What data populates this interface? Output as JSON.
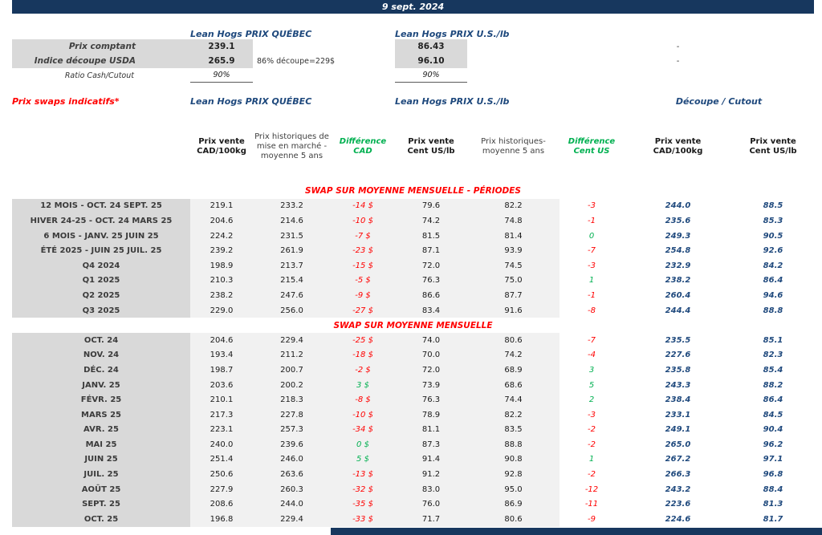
{
  "header": {
    "date": "9 sept. 2024"
  },
  "colors": {
    "navy": "#17375E",
    "cutout_navy": "#1F497D",
    "red": "#FF0000",
    "green": "#00B050",
    "label_gray": "#D9D9D9",
    "band_gray": "#F1F1F1"
  },
  "spot": {
    "quebec_title": "Lean Hogs PRIX QUÉBEC",
    "us_title": "Lean Hogs PRIX U.S./lb",
    "rows": [
      {
        "label": "Prix comptant",
        "qc": "239.1",
        "note": "",
        "us": "86.43",
        "extra": "-"
      },
      {
        "label": "Indice découpe USDA",
        "qc": "265.9",
        "note": "86% découpe=229$",
        "us": "96.10",
        "extra": "-"
      },
      {
        "label": "Ratio Cash/Cutout",
        "qc": "90%",
        "note": "",
        "us": "90%",
        "extra": ""
      }
    ]
  },
  "swaps": {
    "title": "Prix swaps indicatifs*",
    "quebec_title": "Lean Hogs PRIX QUÉBEC",
    "us_title": "Lean Hogs PRIX U.S./lb",
    "cutout_title": "Découpe / Cutout",
    "columns": {
      "qc_sale": "Prix vente CAD/100kg",
      "qc_hist": "Prix historiques de mise en marché - moyenne 5 ans",
      "diff_cad": "Différence CAD",
      "us_sale": "Prix vente Cent US/lb",
      "us_hist": "Prix historiques- moyenne 5 ans",
      "diff_us": "Différence Cent US",
      "cutout_cad": "Prix vente CAD/100kg",
      "cutout_us": "Prix vente Cent US/lb"
    }
  },
  "sections": [
    {
      "heading": "SWAP SUR MOYENNE MENSUELLE - PÉRIODES",
      "rows": [
        {
          "label": "12 MOIS - OCT. 24 SEPT. 25",
          "qc_sale": "219.1",
          "qc_hist": "233.2",
          "diff_cad": "-14 $",
          "us_sale": "79.6",
          "us_hist": "82.2",
          "diff_us": "-3",
          "cutout_cad": "244.0",
          "cutout_us": "88.5"
        },
        {
          "label": "HIVER 24-25 - OCT. 24 MARS 25",
          "qc_sale": "204.6",
          "qc_hist": "214.6",
          "diff_cad": "-10 $",
          "us_sale": "74.2",
          "us_hist": "74.8",
          "diff_us": "-1",
          "cutout_cad": "235.6",
          "cutout_us": "85.3"
        },
        {
          "label": "6 MOIS - JANV. 25 JUIN 25",
          "qc_sale": "224.2",
          "qc_hist": "231.5",
          "diff_cad": "-7 $",
          "us_sale": "81.5",
          "us_hist": "81.4",
          "diff_us": "0",
          "cutout_cad": "249.3",
          "cutout_us": "90.5"
        },
        {
          "label": "ÉTÉ 2025 - JUIN 25 JUIL. 25",
          "qc_sale": "239.2",
          "qc_hist": "261.9",
          "diff_cad": "-23 $",
          "us_sale": "87.1",
          "us_hist": "93.9",
          "diff_us": "-7",
          "cutout_cad": "254.8",
          "cutout_us": "92.6"
        },
        {
          "label": "Q4 2024",
          "qc_sale": "198.9",
          "qc_hist": "213.7",
          "diff_cad": "-15 $",
          "us_sale": "72.0",
          "us_hist": "74.5",
          "diff_us": "-3",
          "cutout_cad": "232.9",
          "cutout_us": "84.2"
        },
        {
          "label": "Q1 2025",
          "qc_sale": "210.3",
          "qc_hist": "215.4",
          "diff_cad": "-5 $",
          "us_sale": "76.3",
          "us_hist": "75.0",
          "diff_us": "1",
          "cutout_cad": "238.2",
          "cutout_us": "86.4"
        },
        {
          "label": "Q2 2025",
          "qc_sale": "238.2",
          "qc_hist": "247.6",
          "diff_cad": "-9 $",
          "us_sale": "86.6",
          "us_hist": "87.7",
          "diff_us": "-1",
          "cutout_cad": "260.4",
          "cutout_us": "94.6"
        },
        {
          "label": "Q3 2025",
          "qc_sale": "229.0",
          "qc_hist": "256.0",
          "diff_cad": "-27 $",
          "us_sale": "83.4",
          "us_hist": "91.6",
          "diff_us": "-8",
          "cutout_cad": "244.4",
          "cutout_us": "88.8"
        }
      ]
    },
    {
      "heading": "SWAP SUR MOYENNE MENSUELLE",
      "rows": [
        {
          "label": "OCT. 24",
          "qc_sale": "204.6",
          "qc_hist": "229.4",
          "diff_cad": "-25 $",
          "us_sale": "74.0",
          "us_hist": "80.6",
          "diff_us": "-7",
          "cutout_cad": "235.5",
          "cutout_us": "85.1"
        },
        {
          "label": "NOV. 24",
          "qc_sale": "193.4",
          "qc_hist": "211.2",
          "diff_cad": "-18 $",
          "us_sale": "70.0",
          "us_hist": "74.2",
          "diff_us": "-4",
          "cutout_cad": "227.6",
          "cutout_us": "82.3"
        },
        {
          "label": "DÉC. 24",
          "qc_sale": "198.7",
          "qc_hist": "200.7",
          "diff_cad": "-2 $",
          "us_sale": "72.0",
          "us_hist": "68.9",
          "diff_us": "3",
          "cutout_cad": "235.8",
          "cutout_us": "85.4"
        },
        {
          "label": "JANV. 25",
          "qc_sale": "203.6",
          "qc_hist": "200.2",
          "diff_cad": "3 $",
          "us_sale": "73.9",
          "us_hist": "68.6",
          "diff_us": "5",
          "cutout_cad": "243.3",
          "cutout_us": "88.2"
        },
        {
          "label": "FÉVR. 25",
          "qc_sale": "210.1",
          "qc_hist": "218.3",
          "diff_cad": "-8 $",
          "us_sale": "76.3",
          "us_hist": "74.4",
          "diff_us": "2",
          "cutout_cad": "238.4",
          "cutout_us": "86.4"
        },
        {
          "label": "MARS 25",
          "qc_sale": "217.3",
          "qc_hist": "227.8",
          "diff_cad": "-10 $",
          "us_sale": "78.9",
          "us_hist": "82.2",
          "diff_us": "-3",
          "cutout_cad": "233.1",
          "cutout_us": "84.5"
        },
        {
          "label": "AVR. 25",
          "qc_sale": "223.1",
          "qc_hist": "257.3",
          "diff_cad": "-34 $",
          "us_sale": "81.1",
          "us_hist": "83.5",
          "diff_us": "-2",
          "cutout_cad": "249.1",
          "cutout_us": "90.4"
        },
        {
          "label": "MAI 25",
          "qc_sale": "240.0",
          "qc_hist": "239.6",
          "diff_cad": "0 $",
          "us_sale": "87.3",
          "us_hist": "88.8",
          "diff_us": "-2",
          "cutout_cad": "265.0",
          "cutout_us": "96.2"
        },
        {
          "label": "JUIN 25",
          "qc_sale": "251.4",
          "qc_hist": "246.0",
          "diff_cad": "5 $",
          "us_sale": "91.4",
          "us_hist": "90.8",
          "diff_us": "1",
          "cutout_cad": "267.2",
          "cutout_us": "97.1"
        },
        {
          "label": "JUIL. 25",
          "qc_sale": "250.6",
          "qc_hist": "263.6",
          "diff_cad": "-13 $",
          "us_sale": "91.2",
          "us_hist": "92.8",
          "diff_us": "-2",
          "cutout_cad": "266.3",
          "cutout_us": "96.8"
        },
        {
          "label": "AOÛT 25",
          "qc_sale": "227.9",
          "qc_hist": "260.3",
          "diff_cad": "-32 $",
          "us_sale": "83.0",
          "us_hist": "95.0",
          "diff_us": "-12",
          "cutout_cad": "243.2",
          "cutout_us": "88.4"
        },
        {
          "label": "SEPT. 25",
          "qc_sale": "208.6",
          "qc_hist": "244.0",
          "diff_cad": "-35 $",
          "us_sale": "76.0",
          "us_hist": "86.9",
          "diff_us": "-11",
          "cutout_cad": "223.6",
          "cutout_us": "81.3"
        },
        {
          "label": "OCT. 25",
          "qc_sale": "196.8",
          "qc_hist": "229.4",
          "diff_cad": "-33 $",
          "us_sale": "71.7",
          "us_hist": "80.6",
          "diff_us": "-9",
          "cutout_cad": "224.6",
          "cutout_us": "81.7"
        }
      ]
    }
  ]
}
